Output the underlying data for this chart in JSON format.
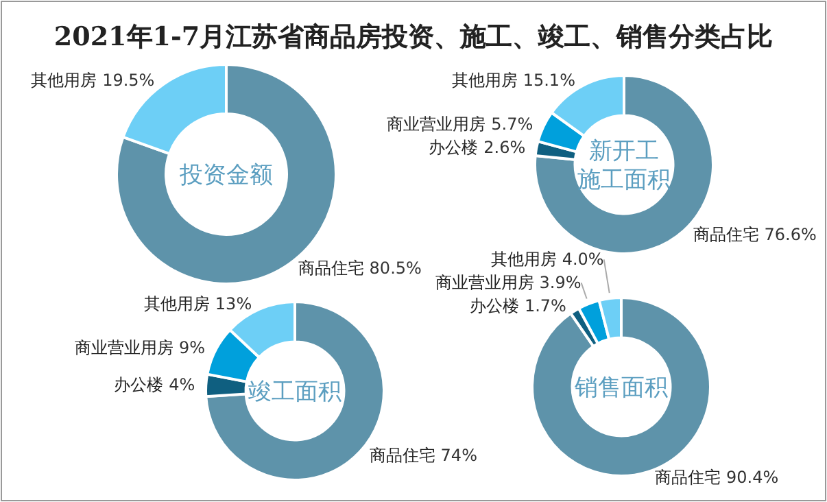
{
  "chart_data": [
    {
      "type": "donut",
      "title": "投资金额",
      "annotations": [
        "2021年1-7月江苏省商品房投资、施工、竣工、销售分类占比"
      ],
      "categories": [
        "商品住宅",
        "其他用房"
      ],
      "values": [
        80.5,
        19.5
      ],
      "value_labels": [
        "80.5%",
        "19.5%"
      ],
      "colors": [
        "#5e93aa",
        "#6dcff6"
      ]
    },
    {
      "type": "donut",
      "title": "新开工施工面积",
      "categories": [
        "商品住宅",
        "办公楼",
        "商业营业用房",
        "其他用房"
      ],
      "values": [
        76.6,
        2.6,
        5.7,
        15.1
      ],
      "value_labels": [
        "76.6%",
        "2.6%",
        "5.7%",
        "15.1%"
      ],
      "colors": [
        "#5e93aa",
        "#0f5f80",
        "#00a0dc",
        "#6dcff6"
      ]
    },
    {
      "type": "donut",
      "title": "竣工面积",
      "categories": [
        "商品住宅",
        "办公楼",
        "商业营业用房",
        "其他用房"
      ],
      "values": [
        74,
        4,
        9,
        13
      ],
      "value_labels": [
        "74%",
        "4%",
        "9%",
        "13%"
      ],
      "colors": [
        "#5e93aa",
        "#0f5f80",
        "#00a0dc",
        "#6dcff6"
      ]
    },
    {
      "type": "donut",
      "title": "销售面积",
      "categories": [
        "商品住宅",
        "办公楼",
        "商业营业用房",
        "其他用房"
      ],
      "values": [
        90.4,
        1.7,
        3.9,
        4.0
      ],
      "value_labels": [
        "90.4%",
        "1.7%",
        "3.9%",
        "4.0%"
      ],
      "colors": [
        "#5e93aa",
        "#0f5f80",
        "#00a0dc",
        "#6dcff6"
      ]
    }
  ]
}
